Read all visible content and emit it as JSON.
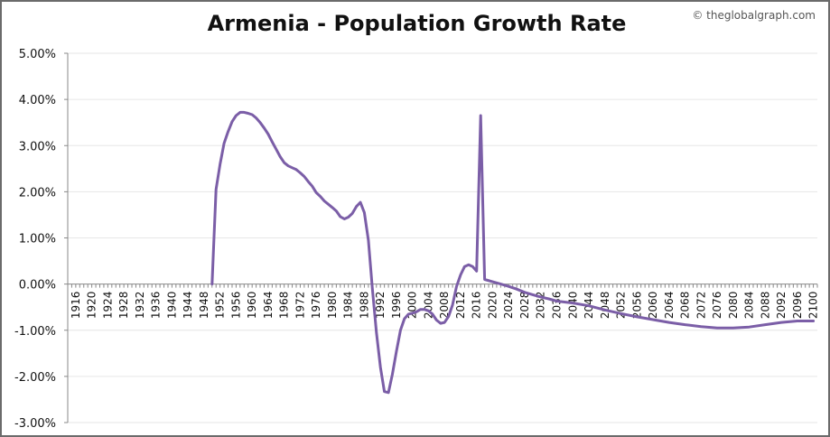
{
  "chart": {
    "title": "Armenia - Population Growth Rate",
    "watermark": "© theglobalgraph.com"
  },
  "colors": {
    "line": "#7b5ea7",
    "axis": "#888888",
    "grid": "#e6e6e6",
    "frame": "#6b6b6b"
  },
  "chart_data": {
    "type": "line",
    "title": "Armenia - Population Growth Rate",
    "xlabel": "",
    "ylabel": "",
    "xlim": [
      1914,
      2101
    ],
    "ylim": [
      -3,
      5
    ],
    "grid": true,
    "y_ticks": [
      "5.00%",
      "4.00%",
      "3.00%",
      "2.00%",
      "1.00%",
      "0.00%",
      "-1.00%",
      "-2.00%",
      "-3.00%"
    ],
    "y_tick_values": [
      5,
      4,
      3,
      2,
      1,
      0,
      -1,
      -2,
      -3
    ],
    "x_ticks": [
      1916,
      1920,
      1924,
      1928,
      1932,
      1936,
      1940,
      1944,
      1948,
      1952,
      1956,
      1960,
      1964,
      1968,
      1972,
      1976,
      1980,
      1984,
      1988,
      1992,
      1996,
      2000,
      2004,
      2008,
      2012,
      2016,
      2020,
      2024,
      2028,
      2032,
      2036,
      2040,
      2044,
      2048,
      2052,
      2056,
      2060,
      2064,
      2068,
      2072,
      2076,
      2080,
      2084,
      2088,
      2092,
      2096,
      2100
    ],
    "series": [
      {
        "points": [
          [
            1950,
            0.0
          ],
          [
            1951,
            2.05
          ],
          [
            1952,
            2.6
          ],
          [
            1953,
            3.05
          ],
          [
            1954,
            3.3
          ],
          [
            1955,
            3.52
          ],
          [
            1956,
            3.65
          ],
          [
            1957,
            3.72
          ],
          [
            1958,
            3.72
          ],
          [
            1959,
            3.7
          ],
          [
            1960,
            3.67
          ],
          [
            1961,
            3.6
          ],
          [
            1962,
            3.5
          ],
          [
            1963,
            3.38
          ],
          [
            1964,
            3.25
          ],
          [
            1965,
            3.08
          ],
          [
            1966,
            2.92
          ],
          [
            1967,
            2.76
          ],
          [
            1968,
            2.63
          ],
          [
            1969,
            2.56
          ],
          [
            1970,
            2.52
          ],
          [
            1971,
            2.48
          ],
          [
            1972,
            2.41
          ],
          [
            1973,
            2.33
          ],
          [
            1974,
            2.22
          ],
          [
            1975,
            2.12
          ],
          [
            1976,
            1.98
          ],
          [
            1977,
            1.9
          ],
          [
            1978,
            1.8
          ],
          [
            1979,
            1.73
          ],
          [
            1980,
            1.66
          ],
          [
            1981,
            1.58
          ],
          [
            1982,
            1.46
          ],
          [
            1983,
            1.41
          ],
          [
            1984,
            1.45
          ],
          [
            1985,
            1.53
          ],
          [
            1986,
            1.68
          ],
          [
            1987,
            1.77
          ],
          [
            1988,
            1.55
          ],
          [
            1989,
            0.95
          ],
          [
            1990,
            -0.1
          ],
          [
            1991,
            -1.05
          ],
          [
            1992,
            -1.8
          ],
          [
            1993,
            -2.33
          ],
          [
            1994,
            -2.35
          ],
          [
            1995,
            -1.95
          ],
          [
            1996,
            -1.45
          ],
          [
            1997,
            -1.0
          ],
          [
            1998,
            -0.75
          ],
          [
            1999,
            -0.65
          ],
          [
            2000,
            -0.63
          ],
          [
            2001,
            -0.6
          ],
          [
            2002,
            -0.55
          ],
          [
            2003,
            -0.55
          ],
          [
            2004,
            -0.58
          ],
          [
            2005,
            -0.65
          ],
          [
            2006,
            -0.78
          ],
          [
            2007,
            -0.85
          ],
          [
            2008,
            -0.83
          ],
          [
            2009,
            -0.7
          ],
          [
            2010,
            -0.45
          ],
          [
            2011,
            -0.05
          ],
          [
            2012,
            0.2
          ],
          [
            2013,
            0.38
          ],
          [
            2014,
            0.42
          ],
          [
            2015,
            0.38
          ],
          [
            2016,
            0.28
          ],
          [
            2017,
            3.65
          ],
          [
            2018,
            0.1
          ],
          [
            2020,
            0.05
          ],
          [
            2022,
            0.0
          ],
          [
            2024,
            -0.05
          ],
          [
            2026,
            -0.11
          ],
          [
            2028,
            -0.18
          ],
          [
            2030,
            -0.23
          ],
          [
            2032,
            -0.28
          ],
          [
            2034,
            -0.32
          ],
          [
            2036,
            -0.37
          ],
          [
            2040,
            -0.41
          ],
          [
            2044,
            -0.47
          ],
          [
            2048,
            -0.56
          ],
          [
            2052,
            -0.64
          ],
          [
            2056,
            -0.71
          ],
          [
            2060,
            -0.77
          ],
          [
            2064,
            -0.83
          ],
          [
            2068,
            -0.88
          ],
          [
            2072,
            -0.92
          ],
          [
            2076,
            -0.95
          ],
          [
            2080,
            -0.95
          ],
          [
            2084,
            -0.93
          ],
          [
            2088,
            -0.88
          ],
          [
            2092,
            -0.83
          ],
          [
            2096,
            -0.8
          ],
          [
            2100,
            -0.8
          ]
        ]
      }
    ]
  }
}
